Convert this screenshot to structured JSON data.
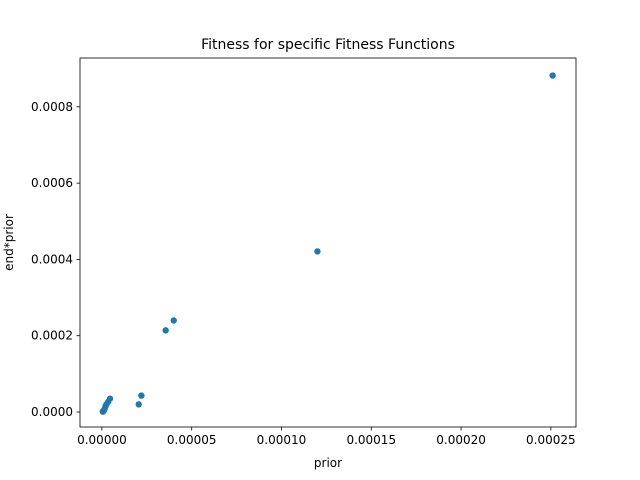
{
  "chart_data": {
    "type": "scatter",
    "title": "Fitness for specific Fitness Functions",
    "xlabel": "prior",
    "ylabel": "end*prior",
    "xlim": [
      -1.22e-05,
      0.000264
    ],
    "ylim": [
      -3.93e-05,
      0.000928
    ],
    "xticks": [
      0,
      5e-05,
      0.0001,
      0.00015,
      0.0002,
      0.00025
    ],
    "xtick_labels": [
      "0.00000",
      "0.00005",
      "0.00010",
      "0.00015",
      "0.00020",
      "0.00025"
    ],
    "yticks": [
      0,
      0.0002,
      0.0004,
      0.0006,
      0.0008
    ],
    "ytick_labels": [
      "0.0000",
      "0.0002",
      "0.0004",
      "0.0006",
      "0.0008"
    ],
    "grid": false,
    "legend": "none",
    "marker_color": "#1f77b4",
    "series": [
      {
        "points": [
          {
            "x": 0.000251,
            "y": 0.000882
          },
          {
            "x": 0.00012,
            "y": 0.000421
          },
          {
            "x": 4e-05,
            "y": 0.00024
          },
          {
            "x": 3.55e-05,
            "y": 0.000214
          },
          {
            "x": 2.2e-05,
            "y": 4.3e-05
          },
          {
            "x": 2.05e-05,
            "y": 2e-05
          },
          {
            "x": 4.5e-06,
            "y": 3.5e-05
          },
          {
            "x": 3.5e-06,
            "y": 2.7e-05
          },
          {
            "x": 2.5e-06,
            "y": 2e-05
          },
          {
            "x": 2e-06,
            "y": 1.5e-05
          },
          {
            "x": 1.5e-06,
            "y": 8e-06
          },
          {
            "x": 1e-06,
            "y": 4e-06
          },
          {
            "x": 8e-07,
            "y": 2e-06
          },
          {
            "x": 5e-07,
            "y": 1e-06
          }
        ]
      }
    ]
  }
}
